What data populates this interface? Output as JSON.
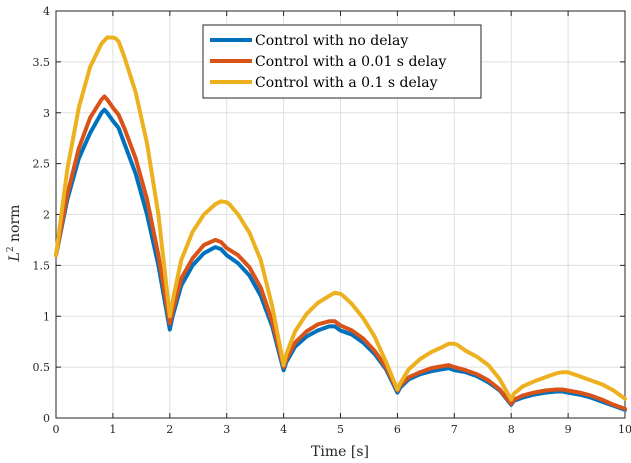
{
  "chart_data": {
    "type": "line",
    "title": "",
    "xlabel": "Time [s]",
    "ylabel_base": "L",
    "ylabel_sup": "2",
    "ylabel_rest": " norm",
    "xlim": [
      0,
      10
    ],
    "ylim": [
      0,
      4
    ],
    "xticks": [
      0,
      1,
      2,
      3,
      4,
      5,
      6,
      7,
      8,
      9,
      10
    ],
    "yticks": [
      0,
      0.5,
      1,
      1.5,
      2,
      2.5,
      3,
      3.5,
      4
    ],
    "xtick_labels": [
      "0",
      "1",
      "2",
      "3",
      "4",
      "5",
      "6",
      "7",
      "8",
      "9",
      "10"
    ],
    "ytick_labels": [
      "0",
      "0.5",
      "1",
      "1.5",
      "2",
      "2.5",
      "3",
      "3.5",
      "4"
    ],
    "grid": true,
    "legend_position": "top-center",
    "series": [
      {
        "name": "Control with no delay",
        "color": "#0072BD",
        "x": [
          0,
          0.2,
          0.4,
          0.6,
          0.8,
          0.85,
          0.9,
          1.0,
          1.1,
          1.2,
          1.4,
          1.6,
          1.8,
          2.0,
          2.05,
          2.2,
          2.4,
          2.6,
          2.8,
          2.9,
          3.0,
          3.2,
          3.4,
          3.6,
          3.8,
          4.0,
          4.05,
          4.2,
          4.4,
          4.6,
          4.8,
          4.9,
          5.0,
          5.2,
          5.4,
          5.6,
          5.8,
          6.0,
          6.05,
          6.2,
          6.4,
          6.6,
          6.8,
          6.9,
          7.0,
          7.2,
          7.4,
          7.6,
          7.8,
          8.0,
          8.05,
          8.2,
          8.4,
          8.6,
          8.8,
          8.9,
          9.0,
          9.2,
          9.4,
          9.6,
          9.8,
          10.0
        ],
        "y": [
          1.6,
          2.15,
          2.55,
          2.8,
          3.0,
          3.03,
          3.0,
          2.92,
          2.85,
          2.7,
          2.4,
          2.0,
          1.5,
          0.87,
          1.0,
          1.3,
          1.5,
          1.62,
          1.68,
          1.66,
          1.6,
          1.52,
          1.4,
          1.2,
          0.9,
          0.47,
          0.55,
          0.7,
          0.8,
          0.86,
          0.9,
          0.9,
          0.86,
          0.82,
          0.74,
          0.63,
          0.48,
          0.25,
          0.3,
          0.38,
          0.43,
          0.46,
          0.48,
          0.49,
          0.47,
          0.45,
          0.41,
          0.35,
          0.27,
          0.13,
          0.17,
          0.2,
          0.23,
          0.25,
          0.26,
          0.26,
          0.25,
          0.23,
          0.2,
          0.16,
          0.12,
          0.08
        ]
      },
      {
        "name": "Control with a 0.01 s delay",
        "color": "#D95319",
        "x": [
          0,
          0.2,
          0.4,
          0.6,
          0.8,
          0.85,
          0.9,
          1.0,
          1.1,
          1.2,
          1.4,
          1.6,
          1.8,
          2.0,
          2.05,
          2.2,
          2.4,
          2.6,
          2.8,
          2.9,
          3.0,
          3.2,
          3.4,
          3.6,
          3.8,
          4.0,
          4.05,
          4.2,
          4.4,
          4.6,
          4.8,
          4.9,
          5.0,
          5.2,
          5.4,
          5.6,
          5.8,
          6.0,
          6.05,
          6.2,
          6.4,
          6.6,
          6.8,
          6.9,
          7.0,
          7.2,
          7.4,
          7.6,
          7.8,
          8.0,
          8.05,
          8.2,
          8.4,
          8.6,
          8.8,
          8.9,
          9.0,
          9.2,
          9.4,
          9.6,
          9.8,
          10.0
        ],
        "y": [
          1.6,
          2.2,
          2.65,
          2.95,
          3.13,
          3.16,
          3.13,
          3.05,
          2.98,
          2.85,
          2.55,
          2.15,
          1.6,
          0.93,
          1.05,
          1.37,
          1.57,
          1.7,
          1.75,
          1.73,
          1.67,
          1.6,
          1.48,
          1.28,
          0.95,
          0.5,
          0.58,
          0.74,
          0.85,
          0.92,
          0.95,
          0.95,
          0.91,
          0.86,
          0.78,
          0.66,
          0.5,
          0.27,
          0.32,
          0.4,
          0.45,
          0.49,
          0.51,
          0.52,
          0.5,
          0.47,
          0.43,
          0.37,
          0.28,
          0.14,
          0.18,
          0.22,
          0.25,
          0.27,
          0.28,
          0.28,
          0.27,
          0.25,
          0.22,
          0.18,
          0.13,
          0.09
        ]
      },
      {
        "name": "Control with a 0.1 s delay",
        "color": "#EDB120",
        "x": [
          0,
          0.2,
          0.4,
          0.6,
          0.8,
          0.9,
          1.0,
          1.05,
          1.1,
          1.2,
          1.4,
          1.6,
          1.8,
          2.0,
          2.05,
          2.2,
          2.4,
          2.6,
          2.8,
          2.9,
          3.0,
          3.05,
          3.2,
          3.4,
          3.6,
          3.8,
          4.0,
          4.05,
          4.2,
          4.4,
          4.6,
          4.8,
          4.9,
          5.0,
          5.05,
          5.2,
          5.4,
          5.6,
          5.8,
          6.0,
          6.05,
          6.2,
          6.4,
          6.6,
          6.8,
          6.9,
          7.0,
          7.05,
          7.2,
          7.4,
          7.6,
          7.8,
          8.0,
          8.05,
          8.2,
          8.4,
          8.6,
          8.8,
          8.9,
          9.0,
          9.05,
          9.2,
          9.4,
          9.6,
          9.8,
          10.0
        ],
        "y": [
          1.6,
          2.45,
          3.05,
          3.45,
          3.68,
          3.74,
          3.74,
          3.73,
          3.7,
          3.55,
          3.2,
          2.7,
          2.0,
          1.0,
          1.15,
          1.55,
          1.83,
          2.0,
          2.1,
          2.13,
          2.12,
          2.1,
          2.0,
          1.82,
          1.55,
          1.1,
          0.52,
          0.63,
          0.85,
          1.02,
          1.13,
          1.2,
          1.23,
          1.22,
          1.2,
          1.12,
          0.98,
          0.8,
          0.55,
          0.28,
          0.34,
          0.48,
          0.58,
          0.65,
          0.7,
          0.73,
          0.73,
          0.72,
          0.66,
          0.6,
          0.52,
          0.38,
          0.18,
          0.24,
          0.31,
          0.36,
          0.4,
          0.44,
          0.45,
          0.45,
          0.44,
          0.41,
          0.37,
          0.33,
          0.27,
          0.19
        ]
      }
    ]
  }
}
